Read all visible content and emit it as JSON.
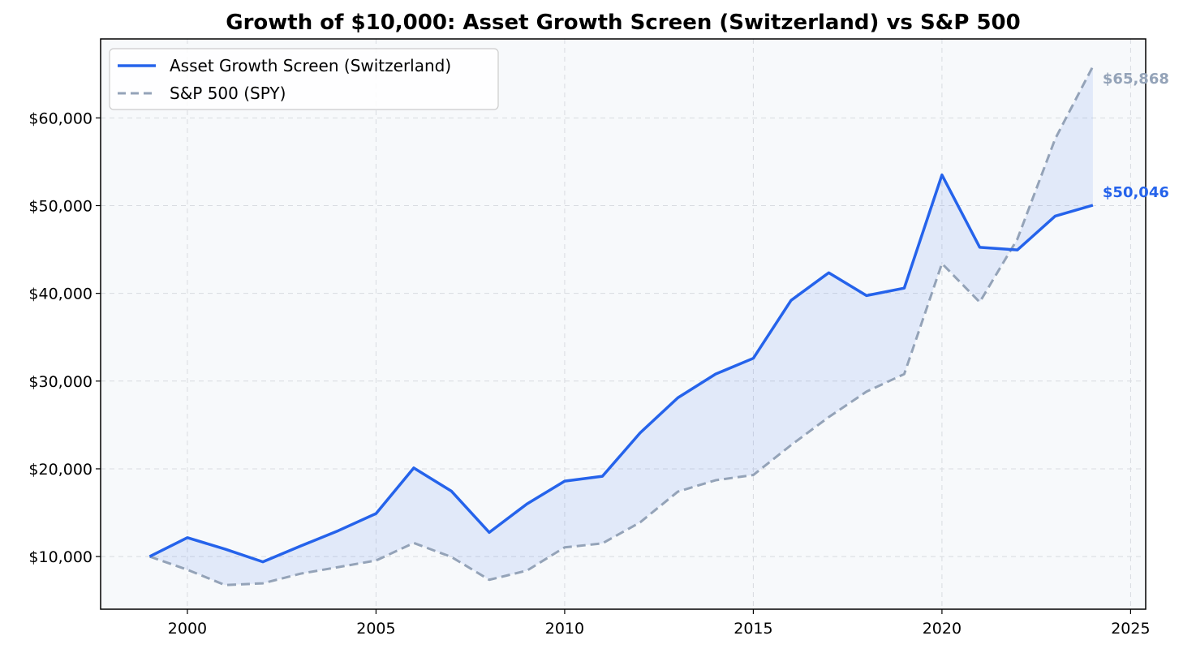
{
  "chart_data": {
    "type": "line",
    "title": "Growth of $10,000: Asset Growth Screen (Switzerland) vs S&P 500",
    "xlabel": "",
    "ylabel": "",
    "x": [
      1999,
      2000,
      2001,
      2002,
      2003,
      2004,
      2005,
      2006,
      2007,
      2008,
      2009,
      2010,
      2011,
      2012,
      2013,
      2014,
      2015,
      2016,
      2017,
      2018,
      2019,
      2020,
      2021,
      2022,
      2023,
      2024
    ],
    "xlim": [
      1997.7,
      2025.4
    ],
    "ylim": [
      4000,
      69000
    ],
    "x_ticks": [
      2000,
      2005,
      2010,
      2015,
      2020,
      2025
    ],
    "x_tick_labels": [
      "2000",
      "2005",
      "2010",
      "2015",
      "2020",
      "2025"
    ],
    "y_ticks": [
      10000,
      20000,
      30000,
      40000,
      50000,
      60000
    ],
    "y_tick_labels": [
      "$10,000",
      "$20,000",
      "$30,000",
      "$40,000",
      "$50,000",
      "$60,000"
    ],
    "grid": true,
    "legend_position": "top-left",
    "fill_between": true,
    "series": [
      {
        "name": "Asset Growth Screen (Switzerland)",
        "color": "#2563eb",
        "style": "solid",
        "end_label": "$50,046",
        "values": [
          10000,
          12150,
          10850,
          9400,
          11200,
          12950,
          14900,
          20100,
          17450,
          12750,
          16000,
          18600,
          19150,
          24100,
          28100,
          30800,
          32600,
          39200,
          42350,
          39750,
          40600,
          53500,
          45250,
          44950,
          48800,
          50046
        ]
      },
      {
        "name": "S&P 500 (SPY)",
        "color": "#94a3b8",
        "style": "dashed",
        "end_label": "$65,868",
        "values": [
          10000,
          8500,
          6750,
          6950,
          8050,
          8800,
          9550,
          11550,
          9950,
          7350,
          8400,
          11050,
          11500,
          13900,
          17400,
          18700,
          19300,
          22700,
          25900,
          28800,
          30800,
          43400,
          39000,
          46200,
          57600,
          65868
        ]
      }
    ]
  }
}
